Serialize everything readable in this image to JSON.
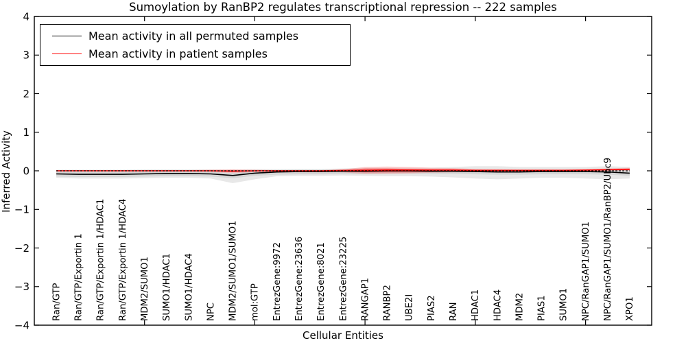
{
  "chart_data": {
    "type": "line",
    "title": "Sumoylation by RanBP2 regulates transcriptional repression -- 222 samples",
    "xlabel": "Cellular Entities",
    "ylabel": "Inferred Activity",
    "ylim": [
      -4,
      4
    ],
    "yticks": [
      -4,
      -3,
      -2,
      -1,
      0,
      1,
      2,
      3,
      4
    ],
    "xlim": [
      0,
      28
    ],
    "xticks": [
      5,
      10,
      15,
      20,
      25
    ],
    "grid": false,
    "legend_position": "upper-left",
    "frame_color": "#000000",
    "background_color": "#ffffff",
    "categories": [
      "Ran/GTP",
      "Ran/GTP/Exportin 1",
      "Ran/GTP/Exportin 1/HDAC1",
      "Ran/GTP/Exportin 1/HDAC4",
      "MDM2/SUMO1",
      "SUMO1/HDAC1",
      "SUMO1/HDAC4",
      "NPC",
      "MDM2/SUMO1/SUMO1",
      "mol:GTP",
      "EntrezGene:9972",
      "EntrezGene:23636",
      "EntrezGene:8021",
      "EntrezGene:23225",
      "RANGAP1",
      "RANBP2",
      "UBE2I",
      "PIAS2",
      "RAN",
      "HDAC1",
      "HDAC4",
      "MDM2",
      "PIAS1",
      "SUMO1",
      "NPC/RanGAP1/SUMO1",
      "NPC/RanGAP1/SUMO1/RanBP2/Ubc9",
      "XPO1"
    ],
    "series": [
      {
        "name": "Mean activity in all permuted samples",
        "color": "#000000",
        "values": [
          -0.08,
          -0.09,
          -0.09,
          -0.09,
          -0.08,
          -0.07,
          -0.07,
          -0.08,
          -0.12,
          -0.06,
          -0.03,
          -0.02,
          -0.02,
          -0.01,
          -0.01,
          0.0,
          0.0,
          -0.01,
          -0.01,
          -0.02,
          -0.03,
          -0.03,
          -0.02,
          -0.02,
          -0.02,
          -0.03,
          -0.06
        ]
      },
      {
        "name": "Mean activity in patient samples",
        "color": "#ff0000",
        "values": [
          0.0,
          0.0,
          0.0,
          0.0,
          0.0,
          0.0,
          0.0,
          0.0,
          -0.01,
          0.0,
          0.0,
          0.0,
          0.0,
          0.01,
          0.01,
          0.02,
          0.02,
          0.02,
          0.02,
          0.01,
          0.01,
          0.01,
          0.01,
          0.01,
          0.02,
          0.03,
          0.04
        ]
      }
    ],
    "bands": [
      {
        "name": "permuted-range-outer",
        "color": "#e8e8e8",
        "opacity": 1,
        "upper": [
          0.03,
          0.03,
          0.03,
          0.03,
          0.04,
          0.04,
          0.04,
          0.04,
          0.03,
          0.05,
          0.05,
          0.05,
          0.05,
          0.06,
          0.08,
          0.08,
          0.08,
          0.08,
          0.1,
          0.12,
          0.12,
          0.1,
          0.1,
          0.1,
          0.1,
          0.12,
          0.1
        ],
        "lower": [
          -0.18,
          -0.2,
          -0.2,
          -0.2,
          -0.19,
          -0.18,
          -0.18,
          -0.2,
          -0.32,
          -0.22,
          -0.14,
          -0.13,
          -0.13,
          -0.12,
          -0.13,
          -0.14,
          -0.14,
          -0.15,
          -0.17,
          -0.2,
          -0.22,
          -0.2,
          -0.18,
          -0.18,
          -0.2,
          -0.22,
          -0.2
        ]
      },
      {
        "name": "permuted-range-inner",
        "color": "#d6d6d6",
        "opacity": 1,
        "upper": [
          -0.03,
          -0.04,
          -0.04,
          -0.04,
          -0.03,
          -0.02,
          -0.02,
          -0.03,
          -0.06,
          -0.01,
          0.02,
          0.03,
          0.03,
          0.04,
          0.04,
          0.05,
          0.05,
          0.04,
          0.04,
          0.03,
          0.02,
          0.02,
          0.03,
          0.03,
          0.03,
          0.02,
          -0.01
        ],
        "lower": [
          -0.15,
          -0.16,
          -0.16,
          -0.16,
          -0.15,
          -0.14,
          -0.14,
          -0.15,
          -0.19,
          -0.13,
          -0.1,
          -0.09,
          -0.09,
          -0.08,
          -0.08,
          -0.07,
          -0.07,
          -0.08,
          -0.08,
          -0.09,
          -0.1,
          -0.1,
          -0.09,
          -0.09,
          -0.09,
          -0.1,
          -0.13
        ]
      },
      {
        "name": "patient-range-outer",
        "color": "#ff3030",
        "opacity": 0.22,
        "upper": [
          0.02,
          0.02,
          0.02,
          0.02,
          0.02,
          0.02,
          0.02,
          0.03,
          0.04,
          0.03,
          0.02,
          0.02,
          0.02,
          0.04,
          0.1,
          0.11,
          0.1,
          0.08,
          0.07,
          0.05,
          0.04,
          0.03,
          0.03,
          0.03,
          0.04,
          0.06,
          0.08
        ],
        "lower": [
          -0.02,
          -0.02,
          -0.02,
          -0.02,
          -0.02,
          -0.02,
          -0.02,
          -0.03,
          -0.06,
          -0.03,
          -0.02,
          -0.02,
          -0.02,
          -0.04,
          -0.08,
          -0.08,
          -0.07,
          -0.05,
          -0.04,
          -0.03,
          -0.02,
          -0.01,
          -0.01,
          -0.01,
          -0.01,
          0.0,
          0.0
        ]
      },
      {
        "name": "patient-range-inner",
        "color": "#ff2020",
        "opacity": 0.45,
        "upper": [
          0.01,
          0.01,
          0.01,
          0.01,
          0.01,
          0.01,
          0.01,
          0.01,
          0.02,
          0.01,
          0.01,
          0.01,
          0.01,
          0.02,
          0.06,
          0.06,
          0.05,
          0.04,
          0.04,
          0.03,
          0.03,
          0.03,
          0.03,
          0.03,
          0.03,
          0.04,
          0.06
        ],
        "lower": [
          -0.01,
          -0.01,
          -0.01,
          -0.01,
          -0.01,
          -0.01,
          -0.01,
          -0.01,
          -0.03,
          -0.01,
          -0.01,
          -0.01,
          -0.01,
          -0.02,
          -0.04,
          -0.04,
          -0.04,
          -0.03,
          -0.02,
          -0.02,
          -0.01,
          -0.01,
          0.0,
          0.0,
          0.0,
          0.01,
          0.02
        ]
      }
    ],
    "zero_line": {
      "y": 0,
      "style": "dashed",
      "color": "#000000"
    }
  },
  "legend": {
    "entries": [
      {
        "label": "Mean activity in all permuted samples",
        "color": "#000000"
      },
      {
        "label": "Mean activity in patient samples",
        "color": "#ff0000"
      }
    ]
  }
}
